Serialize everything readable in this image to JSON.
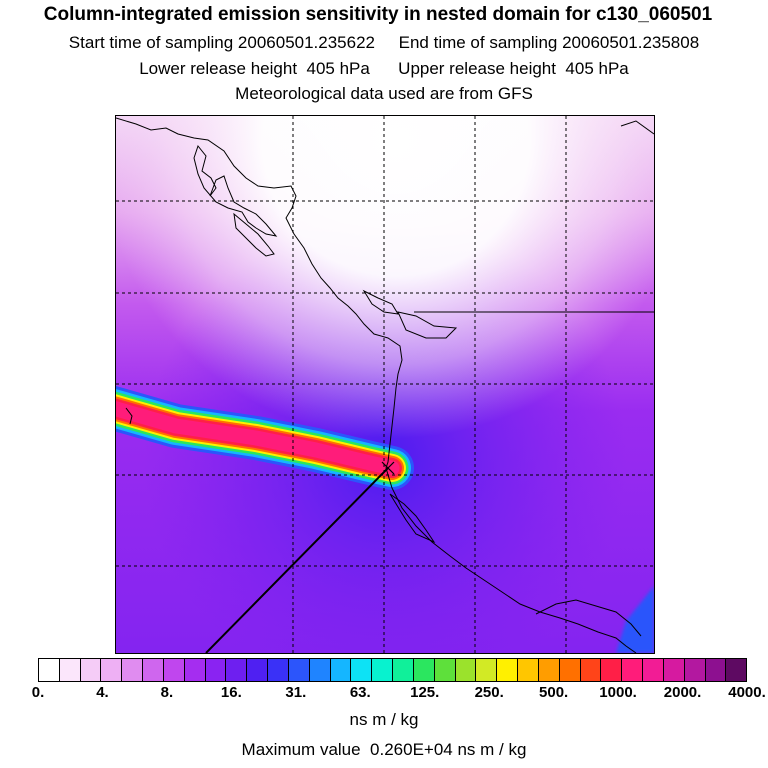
{
  "header": {
    "title": "Column-integrated emission sensitivity in nested domain for c130_060501",
    "sampling_line": "Start time of sampling 20060501.235622     End time of sampling 20060501.235808",
    "release_line": "Lower release height  405 hPa      Upper release height  405 hPa",
    "met_line": "Meteorological data used are from GFS"
  },
  "colorbar": {
    "colors": [
      "#ffffff",
      "#fbe6fb",
      "#f5ccf7",
      "#eeb0f4",
      "#e08cf0",
      "#cf66ee",
      "#c046ee",
      "#a52df0",
      "#8a23f2",
      "#6e1ff0",
      "#4f20f2",
      "#3a31f7",
      "#2c55fb",
      "#1f84ff",
      "#15b6ff",
      "#0de2f5",
      "#08f2cf",
      "#10f09a",
      "#2be65f",
      "#5ee03b",
      "#9be22c",
      "#d2ea25",
      "#fff000",
      "#ffc600",
      "#ff9d00",
      "#ff7000",
      "#ff4419",
      "#ff1f47",
      "#ff1c7a",
      "#f21c95",
      "#d61aa0",
      "#b318a0",
      "#8d1090",
      "#5e0a62"
    ],
    "tick_labels": [
      "0.",
      "4.",
      "8.",
      "16.",
      "31.",
      "63.",
      "125.",
      "250.",
      "500.",
      "1000.",
      "2000.",
      "4000."
    ],
    "units": "ns m / kg"
  },
  "footer": {
    "max_value_line": "Maximum value  0.260E+04 ns m / kg"
  },
  "map": {
    "background_color": "#7b1ff2",
    "plume_colors": [
      "#2c55fb",
      "#15b6ff",
      "#2be65f",
      "#fff000",
      "#ff7000",
      "#ff1f47",
      "#ff1c7a"
    ],
    "coastline_color": "#000000",
    "grid_style": "dashed"
  }
}
